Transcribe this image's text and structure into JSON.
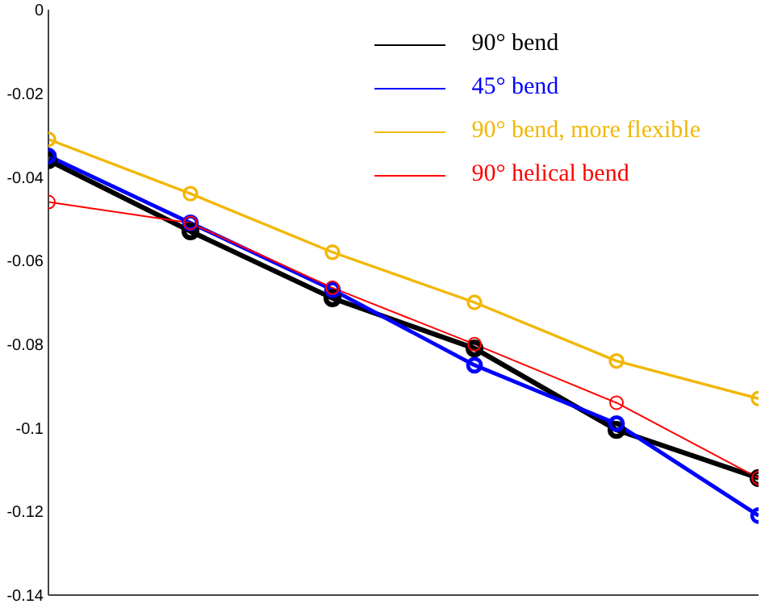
{
  "chart_data": {
    "type": "line",
    "categories": [
      null,
      null,
      null,
      null,
      null,
      null
    ],
    "series": [
      {
        "name": "90° bend",
        "color": "#000000",
        "values": [
          -0.036,
          -0.053,
          -0.069,
          -0.081,
          -0.1005,
          -0.112
        ]
      },
      {
        "name": "45° bend",
        "color": "#0000ff",
        "values": [
          -0.035,
          -0.051,
          -0.067,
          -0.085,
          -0.099,
          -0.121
        ]
      },
      {
        "name": "90° bend, more flexible",
        "color": "#f2b705",
        "values": [
          -0.031,
          -0.044,
          -0.058,
          -0.07,
          -0.084,
          -0.093
        ]
      },
      {
        "name": "90° helical bend",
        "color": "#ff0000",
        "values": [
          -0.046,
          -0.051,
          -0.0665,
          -0.08,
          -0.094,
          -0.112
        ]
      }
    ],
    "ylim": [
      -0.14,
      0
    ],
    "yticks": [
      -0.14,
      -0.12,
      -0.1,
      -0.08,
      -0.06,
      -0.04,
      -0.02,
      0
    ],
    "tick_labels": "y",
    "grid": false,
    "legend": "top right",
    "marker": "circle",
    "line_style": "solid"
  }
}
